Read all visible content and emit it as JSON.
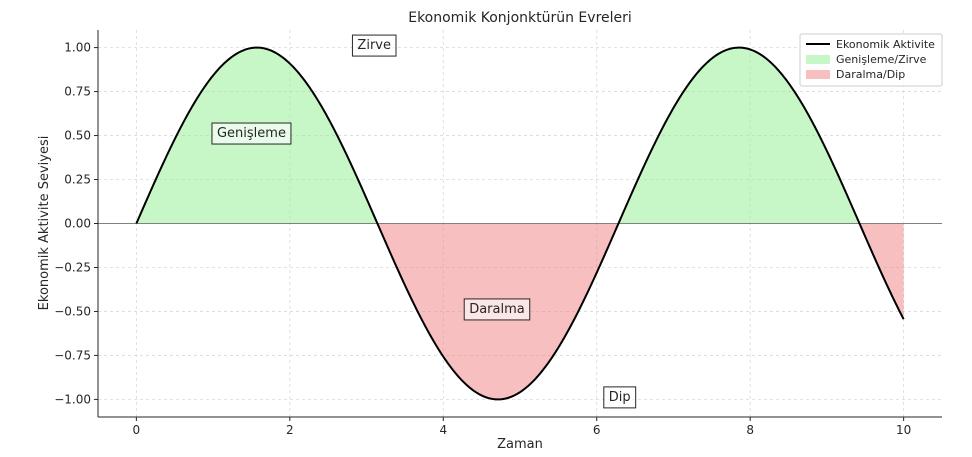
{
  "chart_data": {
    "type": "line",
    "title": "Ekonomik Konjonktürün Evreleri",
    "xlabel": "Zaman",
    "ylabel": "Ekonomik Aktivite Seviyesi",
    "xlim": [
      -0.5,
      10.5
    ],
    "ylim": [
      -1.1,
      1.1
    ],
    "xticks": [
      0,
      2,
      4,
      6,
      8,
      10
    ],
    "xtick_labels": [
      "0",
      "2",
      "4",
      "6",
      "8",
      "10"
    ],
    "yticks": [
      1.0,
      0.75,
      0.5,
      0.25,
      0.0,
      -0.25,
      -0.5,
      -0.75,
      -1.0
    ],
    "ytick_labels": [
      "1.00",
      "0.75",
      "0.50",
      "0.25",
      "0.00",
      "−0.25",
      "−0.50",
      "−0.75",
      "−1.00"
    ],
    "grid": true,
    "legend_placement": "upper-right",
    "series": [
      {
        "name": "Ekonomik Aktivite",
        "function": "sin(x)",
        "x_range": [
          0,
          10
        ],
        "color": "#000000"
      }
    ],
    "fills": [
      {
        "name": "Genişleme/Zirve",
        "condition": "y >= 0",
        "color": "#90ee90"
      },
      {
        "name": "Daralma/Dip",
        "condition": "y < 0",
        "color": "#f08080"
      }
    ],
    "annotations": [
      {
        "text": "Zirve",
        "x": 3.1,
        "y": 1.02
      },
      {
        "text": "Genişleme",
        "x": 1.5,
        "y": 0.52
      },
      {
        "text": "Daralma",
        "x": 4.7,
        "y": -0.48
      },
      {
        "text": "Dip",
        "x": 6.3,
        "y": -0.98
      }
    ],
    "zero_line": true
  }
}
